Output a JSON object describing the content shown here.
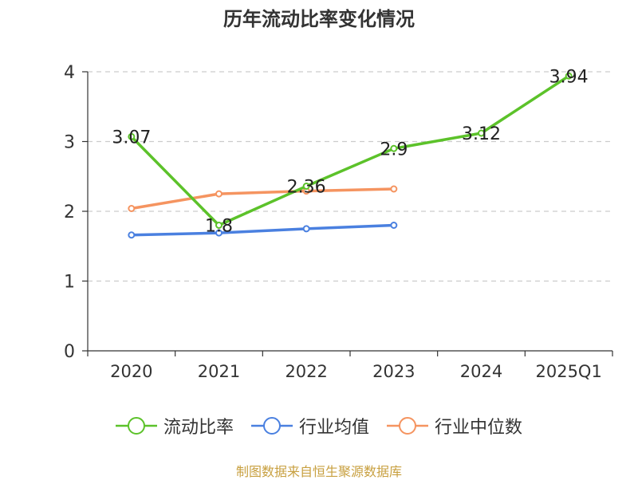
{
  "chart_data": {
    "type": "line",
    "title": "历年流动比率变化情况",
    "categories": [
      "2020",
      "2021",
      "2022",
      "2023",
      "2024",
      "2025Q1"
    ],
    "ylim": [
      0,
      4
    ],
    "yticks": [
      "0",
      "1",
      "2",
      "3",
      "4"
    ],
    "grid": true,
    "legend_position": "bottom",
    "series": [
      {
        "name": "流动比率",
        "color": "#5cc22a",
        "values": [
          3.07,
          1.8,
          2.36,
          2.9,
          3.12,
          3.94
        ],
        "labels": [
          "3.07",
          "1.8",
          "2.36",
          "2.9",
          "3.12",
          "3.94"
        ],
        "show_labels": true
      },
      {
        "name": "行业均值",
        "color": "#4a80e0",
        "values": [
          1.66,
          1.69,
          1.75,
          1.8,
          null,
          null
        ],
        "show_labels": false
      },
      {
        "name": "行业中位数",
        "color": "#f59460",
        "values": [
          2.04,
          2.25,
          2.29,
          2.32,
          null,
          null
        ],
        "show_labels": false
      }
    ]
  },
  "footer": "制图数据来自恒生聚源数据库"
}
